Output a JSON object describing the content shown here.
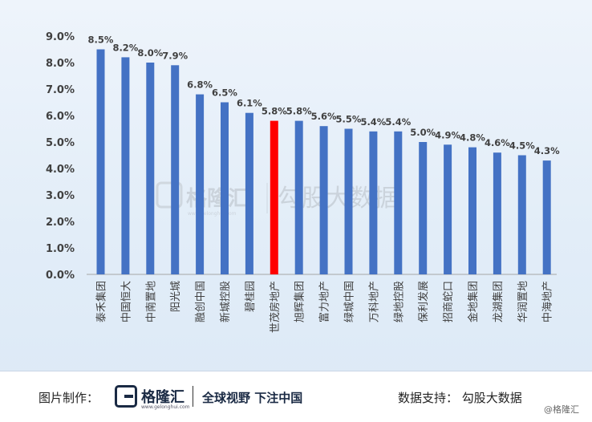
{
  "chart_data": {
    "type": "bar",
    "title": "",
    "xlabel": "",
    "ylabel": "",
    "ylim": [
      0,
      9
    ],
    "yticks": [
      "0.0%",
      "1.0%",
      "2.0%",
      "3.0%",
      "4.0%",
      "5.0%",
      "6.0%",
      "7.0%",
      "8.0%",
      "9.0%"
    ],
    "grid": false,
    "categories": [
      "泰禾集团",
      "中国恒大",
      "中南置地",
      "阳光城",
      "融创中国",
      "新城控股",
      "碧桂园",
      "世茂房地产",
      "旭辉集团",
      "富力地产",
      "绿城中国",
      "万科地产",
      "绿地控股",
      "保利发展",
      "招商蛇口",
      "金地集团",
      "龙湖集团",
      "华润置地",
      "中海地产"
    ],
    "values": [
      8.5,
      8.2,
      8.0,
      7.9,
      6.8,
      6.5,
      6.1,
      5.8,
      5.8,
      5.6,
      5.5,
      5.4,
      5.4,
      5.0,
      4.9,
      4.8,
      4.6,
      4.5,
      4.3
    ],
    "value_labels": [
      "8.5%",
      "8.2%",
      "8.0%",
      "7.9%",
      "6.8%",
      "6.5%",
      "6.1%",
      "5.8%",
      "5.8%",
      "5.6%",
      "5.5%",
      "5.4%",
      "5.4%",
      "5.0%",
      "4.9%",
      "4.8%",
      "4.6%",
      "4.5%",
      "4.3%"
    ],
    "bar_color": "#4472c4",
    "highlight_color": "#ff0000",
    "highlight_category": "世茂房地产"
  },
  "watermark": {
    "brand": "格隆汇",
    "domain": "www.gelonghui.com",
    "data_brand": "勾股大数据"
  },
  "footer": {
    "image_credit_label": "图片制作：",
    "logo_text": "格隆汇",
    "logo_subtext": "www.gelonghui.com",
    "slogan": "全球视野 下注中国",
    "data_source": "数据支持：  勾股大数据"
  },
  "corner_watermark": "@格隆汇",
  "colors": {
    "text": "#404040",
    "axis": "#a6a6a6"
  }
}
